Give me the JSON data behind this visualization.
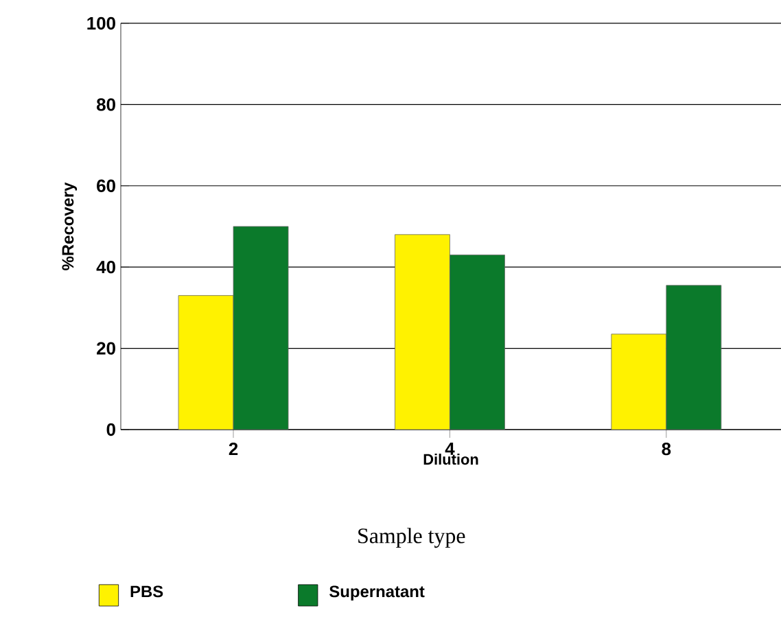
{
  "chart_data": {
    "type": "bar",
    "xlabel": "Dilution",
    "ylabel": "%Recovery",
    "legend_title": "Sample type",
    "categories": [
      "2",
      "4",
      "8"
    ],
    "series": [
      {
        "name": "PBS",
        "color": "#fff200",
        "values": [
          33,
          48,
          23.5
        ]
      },
      {
        "name": "Supernatant",
        "color": "#0b7a2b",
        "values": [
          50,
          43,
          35.5
        ]
      }
    ],
    "ylim": [
      0,
      100
    ],
    "yticks": [
      0,
      20,
      40,
      60,
      80,
      100
    ],
    "grid": "y",
    "legend": "bottom"
  }
}
